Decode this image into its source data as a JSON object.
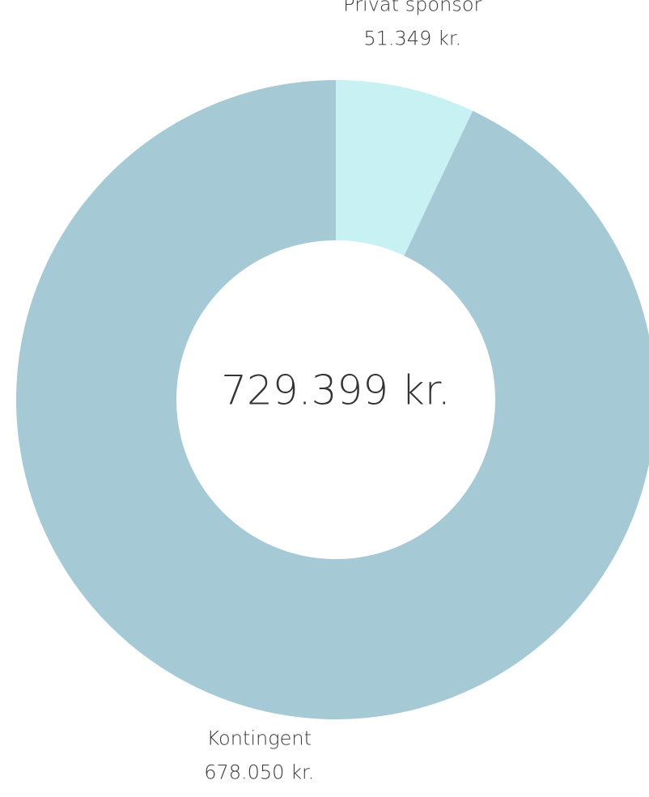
{
  "chart_data": {
    "type": "donut",
    "categories": [
      "Privat sponsor",
      "Kontingent"
    ],
    "values": [
      51349,
      678050
    ],
    "value_labels": [
      "51.349 kr.",
      "678.050 kr."
    ],
    "colors": [
      "#c8f1f3",
      "#a5cad6"
    ],
    "center_label": "729.399 kr."
  }
}
